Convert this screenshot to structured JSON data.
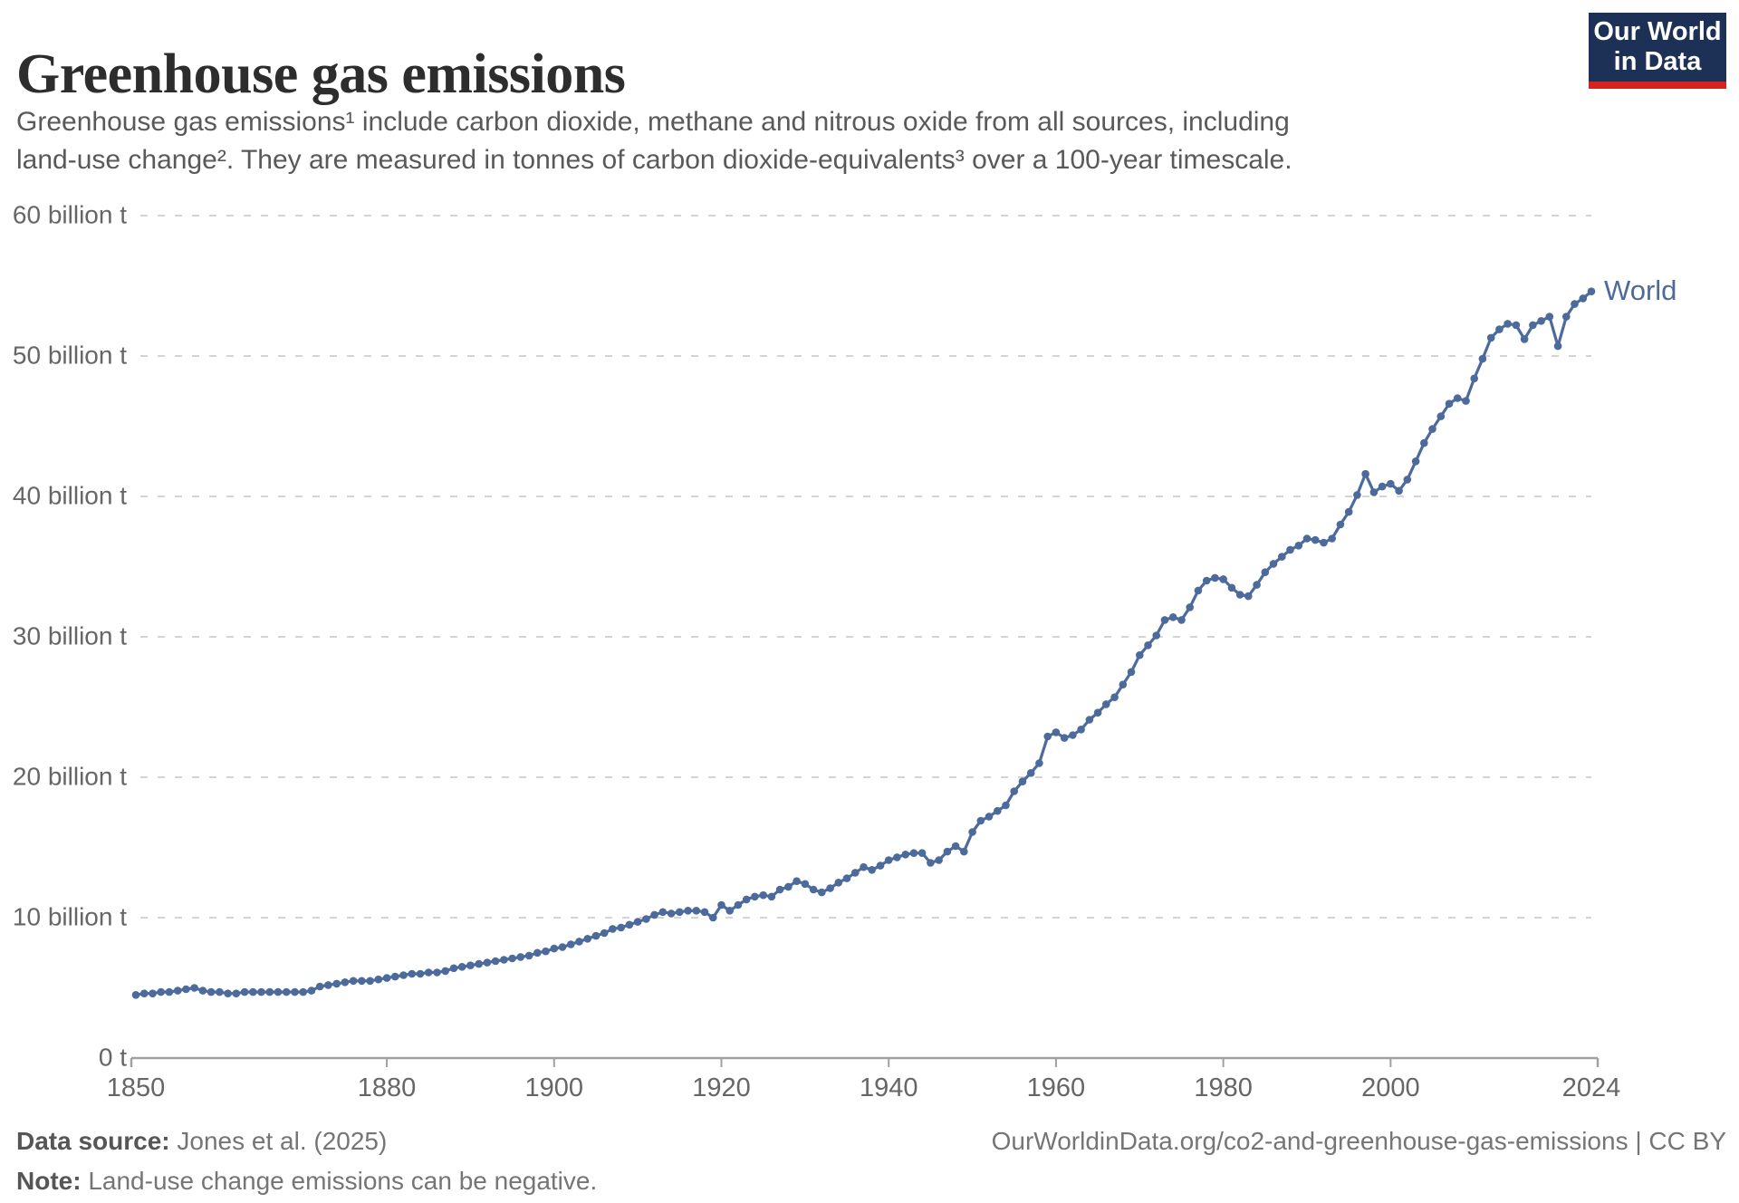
{
  "header": {
    "title": "Greenhouse gas emissions",
    "subtitle": "Greenhouse gas emissions¹ include carbon dioxide, methane and nitrous oxide from all sources, including land-use change². They are measured in tonnes of carbon dioxide-equivalents³ over a 100-year timescale.",
    "logo": {
      "line1": "Our World",
      "line2": "in Data",
      "bg_color": "#1d3156",
      "stripe_color": "#d7231e"
    }
  },
  "footer": {
    "data_source_label": "Data source:",
    "data_source_value": "Jones et al. (2025)",
    "note_label": "Note:",
    "note_value": "Land-use change emissions can be negative.",
    "url": "OurWorldinData.org/co2-and-greenhouse-gas-emissions",
    "divider": "|",
    "license": "CC BY"
  },
  "chart_data": {
    "type": "line",
    "title": "Greenhouse gas emissions",
    "xlabel": "",
    "ylabel": "",
    "unit": "billion tonnes of CO2-equivalents",
    "xlim": [
      1850,
      2024
    ],
    "ylim": [
      0,
      60
    ],
    "grid": "horizontal-dashed",
    "legend_position": "end-of-line-label",
    "colors": {
      "line": "#4c6a9c",
      "grid": "#d4d4d4",
      "axis": "#a1a1a1",
      "tick_text": "#666666"
    },
    "yticks": [
      {
        "value": 0,
        "label": "0 t"
      },
      {
        "value": 10,
        "label": "10 billion t"
      },
      {
        "value": 20,
        "label": "20 billion t"
      },
      {
        "value": 30,
        "label": "30 billion t"
      },
      {
        "value": 40,
        "label": "40 billion t"
      },
      {
        "value": 50,
        "label": "50 billion t"
      },
      {
        "value": 60,
        "label": "60 billion t"
      }
    ],
    "xticks": [
      {
        "value": 1850,
        "label": "1850"
      },
      {
        "value": 1880,
        "label": "1880"
      },
      {
        "value": 1900,
        "label": "1900"
      },
      {
        "value": 1920,
        "label": "1920"
      },
      {
        "value": 1940,
        "label": "1940"
      },
      {
        "value": 1960,
        "label": "1960"
      },
      {
        "value": 1980,
        "label": "1980"
      },
      {
        "value": 2000,
        "label": "2000"
      },
      {
        "value": 2024,
        "label": "2024"
      }
    ],
    "series": [
      {
        "name": "World",
        "color": "#4c6a9c",
        "years": [
          1850,
          1851,
          1852,
          1853,
          1854,
          1855,
          1856,
          1857,
          1858,
          1859,
          1860,
          1861,
          1862,
          1863,
          1864,
          1865,
          1866,
          1867,
          1868,
          1869,
          1870,
          1871,
          1872,
          1873,
          1874,
          1875,
          1876,
          1877,
          1878,
          1879,
          1880,
          1881,
          1882,
          1883,
          1884,
          1885,
          1886,
          1887,
          1888,
          1889,
          1890,
          1891,
          1892,
          1893,
          1894,
          1895,
          1896,
          1897,
          1898,
          1899,
          1900,
          1901,
          1902,
          1903,
          1904,
          1905,
          1906,
          1907,
          1908,
          1909,
          1910,
          1911,
          1912,
          1913,
          1914,
          1915,
          1916,
          1917,
          1918,
          1919,
          1920,
          1921,
          1922,
          1923,
          1924,
          1925,
          1926,
          1927,
          1928,
          1929,
          1930,
          1931,
          1932,
          1933,
          1934,
          1935,
          1936,
          1937,
          1938,
          1939,
          1940,
          1941,
          1942,
          1943,
          1944,
          1945,
          1946,
          1947,
          1948,
          1949,
          1950,
          1951,
          1952,
          1953,
          1954,
          1955,
          1956,
          1957,
          1958,
          1959,
          1960,
          1961,
          1962,
          1963,
          1964,
          1965,
          1966,
          1967,
          1968,
          1969,
          1970,
          1971,
          1972,
          1973,
          1974,
          1975,
          1976,
          1977,
          1978,
          1979,
          1980,
          1981,
          1982,
          1983,
          1984,
          1985,
          1986,
          1987,
          1988,
          1989,
          1990,
          1991,
          1992,
          1993,
          1994,
          1995,
          1996,
          1997,
          1998,
          1999,
          2000,
          2001,
          2002,
          2003,
          2004,
          2005,
          2006,
          2007,
          2008,
          2009,
          2010,
          2011,
          2012,
          2013,
          2014,
          2015,
          2016,
          2017,
          2018,
          2019,
          2020,
          2021,
          2022,
          2023,
          2024
        ],
        "values": [
          4.5,
          4.6,
          4.6,
          4.7,
          4.7,
          4.8,
          4.9,
          5.0,
          4.8,
          4.7,
          4.7,
          4.6,
          4.6,
          4.7,
          4.7,
          4.7,
          4.7,
          4.7,
          4.7,
          4.7,
          4.7,
          4.8,
          5.1,
          5.2,
          5.3,
          5.4,
          5.5,
          5.5,
          5.5,
          5.6,
          5.7,
          5.8,
          5.9,
          6.0,
          6.0,
          6.1,
          6.1,
          6.2,
          6.4,
          6.5,
          6.6,
          6.7,
          6.8,
          6.9,
          7.0,
          7.1,
          7.2,
          7.3,
          7.5,
          7.6,
          7.8,
          7.9,
          8.1,
          8.3,
          8.5,
          8.7,
          8.9,
          9.2,
          9.3,
          9.5,
          9.7,
          9.9,
          10.2,
          10.4,
          10.3,
          10.4,
          10.5,
          10.5,
          10.4,
          10.0,
          10.9,
          10.5,
          10.9,
          11.3,
          11.5,
          11.6,
          11.5,
          12.0,
          12.2,
          12.6,
          12.4,
          12.0,
          11.8,
          12.1,
          12.5,
          12.8,
          13.2,
          13.6,
          13.4,
          13.7,
          14.1,
          14.3,
          14.5,
          14.6,
          14.6,
          13.9,
          14.1,
          14.7,
          15.1,
          14.7,
          16.1,
          16.9,
          17.2,
          17.6,
          18.0,
          19.0,
          19.7,
          20.3,
          21.0,
          22.9,
          23.2,
          22.8,
          23.0,
          23.4,
          24.1,
          24.6,
          25.2,
          25.7,
          26.6,
          27.5,
          28.7,
          29.4,
          30.1,
          31.2,
          31.4,
          31.2,
          32.1,
          33.3,
          34.0,
          34.2,
          34.1,
          33.5,
          33.0,
          32.9,
          33.7,
          34.6,
          35.2,
          35.7,
          36.2,
          36.5,
          37.0,
          36.9,
          36.7,
          37.0,
          38.0,
          38.9,
          40.1,
          41.6,
          40.3,
          40.7,
          40.9,
          40.4,
          41.2,
          42.5,
          43.8,
          44.8,
          45.7,
          46.6,
          47.0,
          46.8,
          48.4,
          49.8,
          51.3,
          51.9,
          52.3,
          52.2,
          51.2,
          52.2,
          52.5,
          52.8,
          50.7,
          52.8,
          53.7,
          54.1,
          54.6
        ]
      }
    ]
  }
}
